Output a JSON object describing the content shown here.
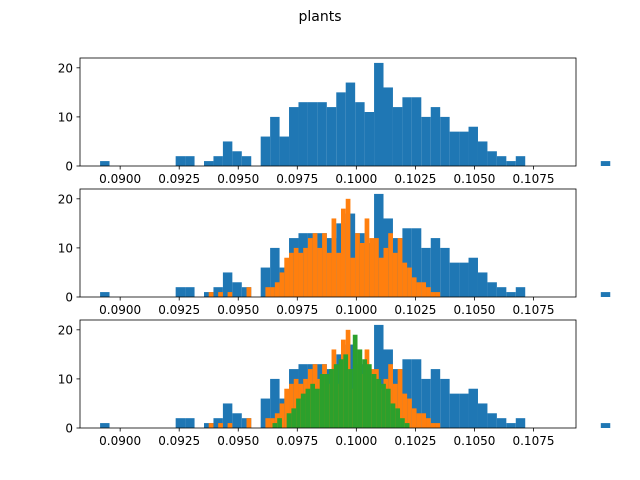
{
  "figure": {
    "title": "plants"
  },
  "colors": {
    "blue": "#1f77b4",
    "orange": "#ff7f0e",
    "green": "#2ca02c"
  },
  "chart_data": [
    {
      "type": "histogram",
      "panel": 1,
      "xlim": [
        0.0883,
        0.1093
      ],
      "ylim": [
        0,
        22
      ],
      "xticks": [
        0.09,
        0.0925,
        0.095,
        0.0975,
        0.1,
        0.1025,
        0.105,
        0.1075
      ],
      "xtick_labels": [
        "0.0900",
        "0.0925",
        "0.0950",
        "0.0975",
        "0.1000",
        "0.1025",
        "0.1050",
        "0.1075"
      ],
      "yticks": [
        0,
        10,
        20
      ],
      "series": [
        {
          "color": "blue",
          "bin_start": 0.08915,
          "bin_width": 0.0004,
          "counts": [
            1,
            0,
            0,
            0,
            0,
            0,
            0,
            0,
            2,
            2,
            0,
            1,
            2,
            5,
            3,
            2,
            0,
            6,
            10,
            6,
            12,
            13,
            13,
            13,
            12,
            15,
            17,
            13,
            11,
            21,
            16,
            12,
            14,
            14,
            10,
            12,
            10,
            7,
            7,
            8,
            5,
            3,
            2,
            1,
            2,
            0,
            0,
            0,
            0,
            0,
            0,
            0,
            0,
            1
          ]
        }
      ]
    },
    {
      "type": "histogram",
      "panel": 2,
      "xlim": [
        0.0883,
        0.1093
      ],
      "ylim": [
        0,
        22
      ],
      "xticks": [
        0.09,
        0.0925,
        0.095,
        0.0975,
        0.1,
        0.1025,
        0.105,
        0.1075
      ],
      "xtick_labels": [
        "0.0900",
        "0.0925",
        "0.0950",
        "0.0975",
        "0.1000",
        "0.1025",
        "0.1050",
        "0.1075"
      ],
      "yticks": [
        0,
        10,
        20
      ],
      "series": [
        {
          "color": "blue",
          "bin_start": 0.08915,
          "bin_width": 0.0004,
          "counts": [
            1,
            0,
            0,
            0,
            0,
            0,
            0,
            0,
            2,
            2,
            0,
            1,
            2,
            5,
            3,
            2,
            0,
            6,
            10,
            6,
            12,
            13,
            13,
            13,
            12,
            15,
            17,
            13,
            11,
            21,
            16,
            12,
            14,
            14,
            10,
            12,
            10,
            7,
            7,
            8,
            5,
            3,
            2,
            1,
            2,
            0,
            0,
            0,
            0,
            0,
            0,
            0,
            0,
            1
          ]
        },
        {
          "color": "orange",
          "bin_start": 0.09375,
          "bin_width": 0.0002,
          "counts": [
            1,
            0,
            1,
            0,
            1,
            0,
            0,
            0,
            2,
            0,
            0,
            0,
            2,
            2,
            3,
            5,
            8,
            9,
            10,
            9,
            10,
            12,
            13,
            10,
            13,
            9,
            16,
            9,
            18,
            20,
            8,
            13,
            11,
            16,
            12,
            12,
            8,
            10,
            13,
            9,
            12,
            7,
            6,
            4,
            3,
            3,
            2,
            1,
            1
          ]
        }
      ]
    },
    {
      "type": "histogram",
      "panel": 3,
      "xlim": [
        0.0883,
        0.1093
      ],
      "ylim": [
        0,
        22
      ],
      "xticks": [
        0.09,
        0.0925,
        0.095,
        0.0975,
        0.1,
        0.1025,
        0.105,
        0.1075
      ],
      "xtick_labels": [
        "0.0900",
        "0.0925",
        "0.0950",
        "0.0975",
        "0.1000",
        "0.1025",
        "0.1050",
        "0.1075"
      ],
      "yticks": [
        0,
        10,
        20
      ],
      "series": [
        {
          "color": "blue",
          "bin_start": 0.08915,
          "bin_width": 0.0004,
          "counts": [
            1,
            0,
            0,
            0,
            0,
            0,
            0,
            0,
            2,
            2,
            0,
            1,
            2,
            5,
            3,
            2,
            0,
            6,
            10,
            6,
            12,
            13,
            13,
            13,
            12,
            15,
            17,
            13,
            11,
            21,
            16,
            12,
            14,
            14,
            10,
            12,
            10,
            7,
            7,
            8,
            5,
            3,
            2,
            1,
            2,
            0,
            0,
            0,
            0,
            0,
            0,
            0,
            0,
            1
          ]
        },
        {
          "color": "orange",
          "bin_start": 0.09375,
          "bin_width": 0.0002,
          "counts": [
            1,
            0,
            1,
            0,
            1,
            0,
            0,
            0,
            2,
            0,
            0,
            0,
            2,
            2,
            3,
            5,
            8,
            9,
            10,
            9,
            10,
            12,
            13,
            10,
            13,
            9,
            16,
            9,
            18,
            20,
            8,
            13,
            11,
            16,
            12,
            12,
            8,
            10,
            13,
            9,
            12,
            7,
            6,
            4,
            3,
            3,
            2,
            1,
            1
          ]
        },
        {
          "color": "green",
          "bin_start": 0.09625,
          "bin_width": 0.0002,
          "counts": [
            0,
            1,
            2,
            0,
            3,
            4,
            6,
            7,
            8,
            9,
            8,
            11,
            11,
            12,
            13,
            14,
            15,
            12,
            19,
            16,
            14,
            13,
            11,
            10,
            9,
            8,
            5,
            4,
            2,
            1
          ]
        }
      ]
    }
  ]
}
